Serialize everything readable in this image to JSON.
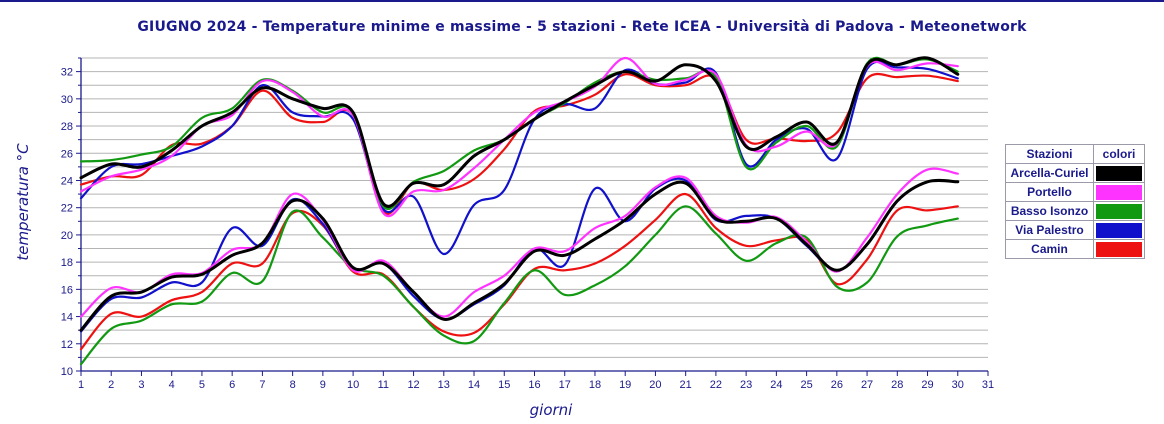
{
  "title": "GIUGNO 2024 - Temperature minime e massime - 5 stazioni -  Rete ICEA - Università di Padova - Meteonetwork",
  "chart_data": {
    "type": "line",
    "title": "GIUGNO 2024 - Temperature minime e massime - 5 stazioni -  Rete ICEA - Università di Padova - Meteonetwork",
    "xlabel": "giorni",
    "ylabel": "temperatura °C",
    "xlim": [
      1,
      31
    ],
    "ylim": [
      10,
      33
    ],
    "x_ticks": [
      1,
      2,
      3,
      4,
      5,
      6,
      7,
      8,
      9,
      10,
      11,
      12,
      13,
      14,
      15,
      16,
      17,
      18,
      19,
      20,
      21,
      22,
      23,
      24,
      25,
      26,
      27,
      28,
      29,
      30,
      31
    ],
    "y_ticks": [
      10,
      12,
      14,
      16,
      18,
      20,
      22,
      24,
      26,
      28,
      30,
      32
    ],
    "grid": "horizontal",
    "legend": {
      "title_left": "Stazioni",
      "title_right": "colori",
      "placement": "right"
    },
    "x": [
      1,
      2,
      3,
      4,
      5,
      6,
      7,
      8,
      9,
      10,
      11,
      12,
      13,
      14,
      15,
      16,
      17,
      18,
      19,
      20,
      21,
      22,
      23,
      24,
      25,
      26,
      27,
      28,
      29,
      30
    ],
    "series": [
      {
        "name": "Arcella-Curiel",
        "color": "#000000",
        "max": [
          24.2,
          25.2,
          25.0,
          26.2,
          28.0,
          29.0,
          30.8,
          30.0,
          29.3,
          29.0,
          22.3,
          23.8,
          23.7,
          25.8,
          27.0,
          28.5,
          29.8,
          31.0,
          32.0,
          31.3,
          32.5,
          31.3,
          26.5,
          27.2,
          28.3,
          26.8,
          32.5,
          32.5,
          33.0,
          31.8
        ],
        "min": [
          13.0,
          15.5,
          15.8,
          16.9,
          17.1,
          18.5,
          19.4,
          22.5,
          21.2,
          17.6,
          17.9,
          15.8,
          13.8,
          15.0,
          16.4,
          18.8,
          18.5,
          19.7,
          21.1,
          23.0,
          23.8,
          21.2,
          21.0,
          21.2,
          19.3,
          17.4,
          19.3,
          22.5,
          23.9,
          23.9
        ]
      },
      {
        "name": "Portello",
        "color": "#ff33ff",
        "max": [
          23.2,
          24.3,
          24.8,
          25.8,
          28.0,
          28.8,
          31.3,
          30.5,
          28.7,
          28.8,
          21.6,
          23.2,
          23.3,
          24.9,
          27.0,
          29.0,
          29.8,
          30.9,
          33.0,
          31.1,
          31.4,
          31.8,
          26.6,
          26.5,
          27.6,
          26.7,
          32.4,
          32.1,
          32.6,
          32.4
        ],
        "min": [
          14.0,
          16.1,
          15.8,
          17.1,
          17.2,
          18.9,
          19.4,
          23.0,
          21.1,
          17.4,
          18.1,
          15.8,
          14.0,
          15.8,
          17.0,
          19.0,
          18.8,
          20.5,
          21.4,
          23.5,
          24.2,
          21.4,
          20.9,
          21.3,
          19.5,
          17.3,
          19.8,
          23.0,
          24.8,
          24.5
        ]
      },
      {
        "name": "Basso Isonzo",
        "color": "#119911",
        "max": [
          25.4,
          25.5,
          25.9,
          26.5,
          28.6,
          29.3,
          31.4,
          30.6,
          29.0,
          29.0,
          22.1,
          23.9,
          24.7,
          26.2,
          27.0,
          28.5,
          29.7,
          31.2,
          32.0,
          31.4,
          31.5,
          31.6,
          25.0,
          26.8,
          28.0,
          26.5,
          32.6,
          32.5,
          32.9,
          32.0
        ],
        "min": [
          10.5,
          13.1,
          13.7,
          14.9,
          15.1,
          17.2,
          16.6,
          21.7,
          19.8,
          17.6,
          17.0,
          14.7,
          12.6,
          12.2,
          15.0,
          17.4,
          15.6,
          16.3,
          17.7,
          20.0,
          22.1,
          20.1,
          18.1,
          19.4,
          19.8,
          16.2,
          16.5,
          19.9,
          20.7,
          21.2
        ]
      },
      {
        "name": "Via Palestro",
        "color": "#1111cc",
        "max": [
          22.7,
          25.0,
          25.2,
          25.8,
          26.5,
          28.0,
          31.0,
          29.0,
          28.7,
          28.5,
          21.9,
          22.8,
          18.6,
          22.2,
          23.3,
          28.5,
          29.6,
          29.3,
          32.1,
          31.1,
          31.2,
          31.9,
          25.2,
          27.0,
          27.8,
          25.6,
          32.2,
          32.3,
          32.2,
          31.5
        ],
        "min": [
          12.9,
          15.3,
          15.4,
          16.5,
          16.5,
          20.5,
          19.2,
          22.6,
          20.8,
          17.5,
          17.9,
          15.5,
          13.8,
          14.9,
          16.3,
          19.0,
          17.8,
          23.4,
          21.0,
          23.4,
          24.0,
          21.1,
          21.4,
          21.2,
          19.2,
          17.4,
          19.3,
          22.5,
          23.9,
          23.9
        ]
      },
      {
        "name": "Camin",
        "color": "#ee1111",
        "max": [
          23.7,
          24.3,
          24.4,
          26.6,
          26.7,
          28.0,
          30.6,
          28.6,
          28.3,
          28.8,
          21.7,
          23.8,
          23.3,
          24.1,
          26.3,
          29.1,
          29.5,
          30.3,
          31.8,
          31.0,
          31.0,
          31.5,
          27.0,
          27.1,
          26.9,
          27.5,
          31.5,
          31.6,
          31.7,
          31.3
        ],
        "min": [
          11.6,
          14.2,
          14.0,
          15.2,
          15.8,
          17.9,
          17.9,
          21.6,
          20.7,
          17.3,
          17.1,
          14.7,
          12.9,
          12.8,
          14.9,
          17.5,
          17.4,
          17.9,
          19.2,
          21.1,
          23.0,
          20.5,
          19.2,
          19.6,
          19.6,
          16.4,
          18.2,
          21.8,
          21.8,
          22.1
        ]
      }
    ]
  }
}
